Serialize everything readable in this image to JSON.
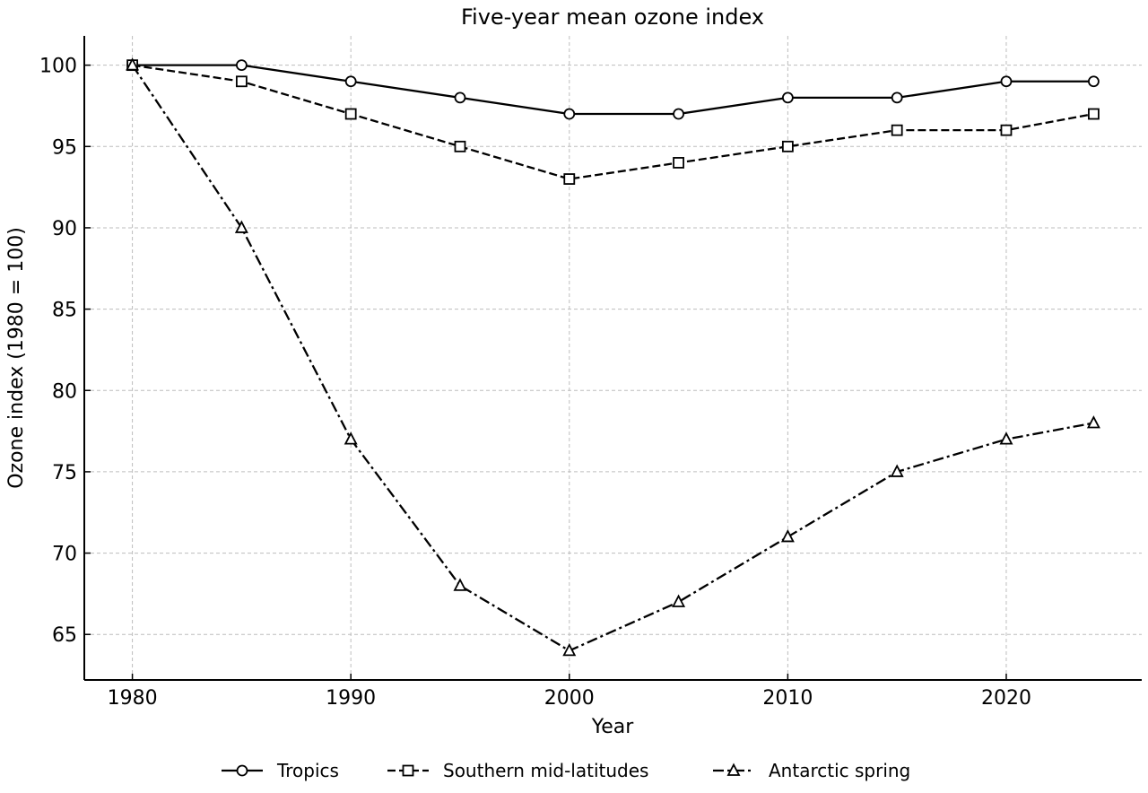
{
  "chart_data": {
    "type": "line",
    "title": "Five-year mean ozone index",
    "xlabel": "Year",
    "ylabel": "Ozone index (1980 = 100)",
    "x": [
      1980,
      1985,
      1990,
      1995,
      2000,
      2005,
      2010,
      2015,
      2020,
      2024
    ],
    "xlim": [
      1977.8,
      2026.2
    ],
    "ylim": [
      62.2,
      101.8
    ],
    "xticks": [
      1980,
      1990,
      2000,
      2010,
      2020
    ],
    "yticks": [
      65,
      70,
      75,
      80,
      85,
      90,
      95,
      100
    ],
    "grid": true,
    "legend_position": "bottom-center",
    "series": [
      {
        "name": "Tropics",
        "values": [
          100,
          100,
          99,
          98,
          97,
          97,
          98,
          98,
          99,
          99
        ],
        "marker": "circle",
        "line_style": "solid",
        "color": "#000000"
      },
      {
        "name": "Southern mid-latitudes",
        "values": [
          100,
          99,
          97,
          95,
          93,
          94,
          95,
          96,
          96,
          97
        ],
        "marker": "square",
        "line_style": "dashed",
        "color": "#000000"
      },
      {
        "name": "Antarctic spring",
        "values": [
          100,
          90,
          77,
          68,
          64,
          67,
          71,
          75,
          77,
          78
        ],
        "marker": "triangle",
        "line_style": "dash-dot",
        "color": "#000000"
      }
    ]
  }
}
